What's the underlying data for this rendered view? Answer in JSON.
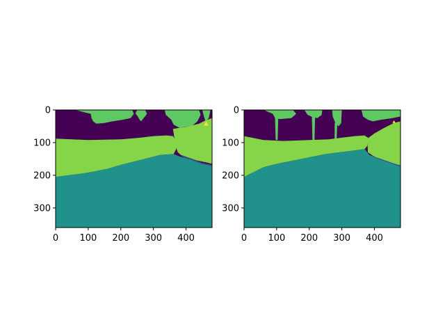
{
  "figure": {
    "background": "#ffffff"
  },
  "chart_data": [
    {
      "type": "heatmap",
      "title": "",
      "xlabel": "",
      "ylabel": "",
      "image_size": [
        480,
        360
      ],
      "xlim": [
        0,
        480
      ],
      "ylim": [
        360,
        0
      ],
      "xticks": [
        0,
        100,
        200,
        300,
        400
      ],
      "yticks": [
        0,
        100,
        200,
        300
      ],
      "grid": false,
      "palette": {
        "sky": "#440154",
        "tree": "#5ec962",
        "vegetation": "#86d549",
        "ground": "#21918c",
        "edge": "#3b528b",
        "highlight": "#fde725"
      },
      "regions": [
        {
          "label": "tree",
          "color_key": "tree",
          "points": [
            [
              60,
              0
            ],
            [
              235,
              0
            ],
            [
              240,
              12
            ],
            [
              230,
              25
            ],
            [
              205,
              30
            ],
            [
              175,
              35
            ],
            [
              150,
              40
            ],
            [
              125,
              42
            ],
            [
              115,
              35
            ],
            [
              110,
              25
            ],
            [
              108,
              12
            ]
          ]
        },
        {
          "label": "tree",
          "color_key": "tree",
          "points": [
            [
              250,
              0
            ],
            [
              275,
              0
            ],
            [
              280,
              12
            ],
            [
              270,
              25
            ],
            [
              262,
              35
            ],
            [
              258,
              30
            ],
            [
              252,
              20
            ],
            [
              245,
              10
            ]
          ]
        },
        {
          "label": "tree",
          "color_key": "tree",
          "points": [
            [
              335,
              0
            ],
            [
              440,
              0
            ],
            [
              445,
              15
            ],
            [
              435,
              35
            ],
            [
              420,
              48
            ],
            [
              380,
              55
            ],
            [
              362,
              45
            ],
            [
              355,
              30
            ],
            [
              338,
              15
            ]
          ]
        },
        {
          "label": "tree",
          "color_key": "tree",
          "points": [
            [
              450,
              0
            ],
            [
              475,
              0
            ],
            [
              470,
              25
            ],
            [
              460,
              35
            ],
            [
              455,
              20
            ]
          ]
        },
        {
          "label": "vegetation",
          "color_key": "vegetation",
          "points": [
            [
              0,
              88
            ],
            [
              100,
              92
            ],
            [
              200,
              90
            ],
            [
              260,
              85
            ],
            [
              300,
              80
            ],
            [
              340,
              78
            ],
            [
              360,
              80
            ],
            [
              370,
              95
            ],
            [
              370,
              120
            ],
            [
              362,
              135
            ],
            [
              320,
              138
            ],
            [
              280,
              148
            ],
            [
              240,
              158
            ],
            [
              200,
              168
            ],
            [
              160,
              180
            ],
            [
              120,
              188
            ],
            [
              80,
              195
            ],
            [
              40,
              200
            ],
            [
              0,
              205
            ]
          ]
        },
        {
          "label": "vegetation",
          "color_key": "vegetation",
          "points": [
            [
              360,
              58
            ],
            [
              400,
              52
            ],
            [
              440,
              42
            ],
            [
              460,
              32
            ],
            [
              480,
              25
            ],
            [
              480,
              165
            ],
            [
              460,
              160
            ],
            [
              435,
              155
            ],
            [
              405,
              145
            ],
            [
              385,
              138
            ],
            [
              375,
              130
            ],
            [
              368,
              110
            ]
          ]
        },
        {
          "label": "edge",
          "color_key": "edge",
          "points": [
            [
              380,
              136
            ],
            [
              420,
              150
            ],
            [
              450,
              162
            ],
            [
              480,
              168
            ],
            [
              480,
              178
            ],
            [
              450,
              170
            ],
            [
              420,
              160
            ],
            [
              395,
              148
            ]
          ]
        },
        {
          "label": "ground",
          "color_key": "ground",
          "points": [
            [
              0,
              205
            ],
            [
              40,
              200
            ],
            [
              80,
              195
            ],
            [
              120,
              188
            ],
            [
              160,
              180
            ],
            [
              200,
              168
            ],
            [
              240,
              158
            ],
            [
              280,
              148
            ],
            [
              320,
              138
            ],
            [
              362,
              135
            ],
            [
              380,
              142
            ],
            [
              420,
              155
            ],
            [
              450,
              166
            ],
            [
              480,
              172
            ],
            [
              480,
              360
            ],
            [
              0,
              360
            ]
          ]
        },
        {
          "label": "highlight",
          "color_key": "highlight",
          "points": [
            [
              455,
              48
            ],
            [
              462,
              35
            ],
            [
              468,
              48
            ]
          ]
        }
      ]
    },
    {
      "type": "heatmap",
      "title": "",
      "xlabel": "",
      "ylabel": "",
      "image_size": [
        480,
        360
      ],
      "xlim": [
        0,
        480
      ],
      "ylim": [
        360,
        0
      ],
      "xticks": [
        0,
        100,
        200,
        300,
        400
      ],
      "yticks": [
        0,
        100,
        200,
        300
      ],
      "grid": false,
      "palette": {
        "sky": "#440154",
        "tree": "#5ec962",
        "vegetation": "#86d549",
        "ground": "#21918c",
        "edge": "#3b528b",
        "highlight": "#fde725"
      },
      "regions": [
        {
          "label": "tree",
          "color_key": "tree",
          "points": [
            [
              60,
              0
            ],
            [
              150,
              0
            ],
            [
              160,
              12
            ],
            [
              145,
              25
            ],
            [
              110,
              28
            ],
            [
              95,
              25
            ],
            [
              88,
              12
            ]
          ]
        },
        {
          "label": "tree",
          "color_key": "tree",
          "points": [
            [
              95,
              25
            ],
            [
              105,
              25
            ],
            [
              103,
              92
            ],
            [
              97,
              92
            ]
          ]
        },
        {
          "label": "tree",
          "color_key": "tree",
          "points": [
            [
              185,
              0
            ],
            [
              240,
              0
            ],
            [
              238,
              15
            ],
            [
              225,
              25
            ],
            [
              210,
              22
            ],
            [
              195,
              15
            ]
          ]
        },
        {
          "label": "tree",
          "color_key": "tree",
          "points": [
            [
              208,
              22
            ],
            [
              218,
              22
            ],
            [
              216,
              92
            ],
            [
              210,
              92
            ]
          ]
        },
        {
          "label": "tree",
          "color_key": "tree",
          "points": [
            [
              270,
              0
            ],
            [
              300,
              0
            ],
            [
              298,
              40
            ],
            [
              290,
              50
            ],
            [
              280,
              40
            ],
            [
              272,
              20
            ]
          ]
        },
        {
          "label": "tree",
          "color_key": "tree",
          "points": [
            [
              278,
              40
            ],
            [
              286,
              40
            ],
            [
              284,
              90
            ],
            [
              278,
              90
            ]
          ]
        },
        {
          "label": "tree",
          "color_key": "tree",
          "points": [
            [
              360,
              0
            ],
            [
              480,
              0
            ],
            [
              480,
              20
            ],
            [
              455,
              25
            ],
            [
              420,
              30
            ],
            [
              395,
              35
            ],
            [
              380,
              30
            ],
            [
              365,
              20
            ]
          ]
        },
        {
          "label": "vegetation",
          "color_key": "vegetation",
          "points": [
            [
              0,
              80
            ],
            [
              60,
              92
            ],
            [
              120,
              95
            ],
            [
              200,
              92
            ],
            [
              260,
              90
            ],
            [
              300,
              85
            ],
            [
              340,
              80
            ],
            [
              370,
              78
            ],
            [
              380,
              85
            ],
            [
              378,
              110
            ],
            [
              370,
              120
            ],
            [
              330,
              125
            ],
            [
              290,
              130
            ],
            [
              250,
              135
            ],
            [
              200,
              145
            ],
            [
              150,
              155
            ],
            [
              100,
              165
            ],
            [
              60,
              175
            ],
            [
              30,
              190
            ],
            [
              0,
              205
            ]
          ]
        },
        {
          "label": "vegetation",
          "color_key": "vegetation",
          "points": [
            [
              378,
              88
            ],
            [
              400,
              72
            ],
            [
              430,
              55
            ],
            [
              460,
              40
            ],
            [
              480,
              35
            ],
            [
              480,
              175
            ],
            [
              460,
              170
            ],
            [
              440,
              160
            ],
            [
              415,
              150
            ],
            [
              395,
              140
            ],
            [
              380,
              130
            ]
          ]
        },
        {
          "label": "edge",
          "color_key": "edge",
          "points": [
            [
              385,
              138
            ],
            [
              420,
              150
            ],
            [
              455,
              162
            ],
            [
              480,
              170
            ],
            [
              480,
              176
            ],
            [
              455,
              168
            ],
            [
              420,
              156
            ],
            [
              395,
              145
            ]
          ]
        },
        {
          "label": "ground",
          "color_key": "ground",
          "points": [
            [
              0,
              205
            ],
            [
              30,
              190
            ],
            [
              60,
              175
            ],
            [
              100,
              165
            ],
            [
              150,
              155
            ],
            [
              200,
              145
            ],
            [
              250,
              135
            ],
            [
              290,
              130
            ],
            [
              330,
              125
            ],
            [
              370,
              120
            ],
            [
              385,
              138
            ],
            [
              420,
              153
            ],
            [
              455,
              165
            ],
            [
              480,
              174
            ],
            [
              480,
              360
            ],
            [
              0,
              360
            ]
          ]
        },
        {
          "label": "highlight",
          "color_key": "highlight",
          "points": [
            [
              455,
              40
            ],
            [
              460,
              32
            ],
            [
              465,
              40
            ]
          ]
        }
      ]
    }
  ]
}
